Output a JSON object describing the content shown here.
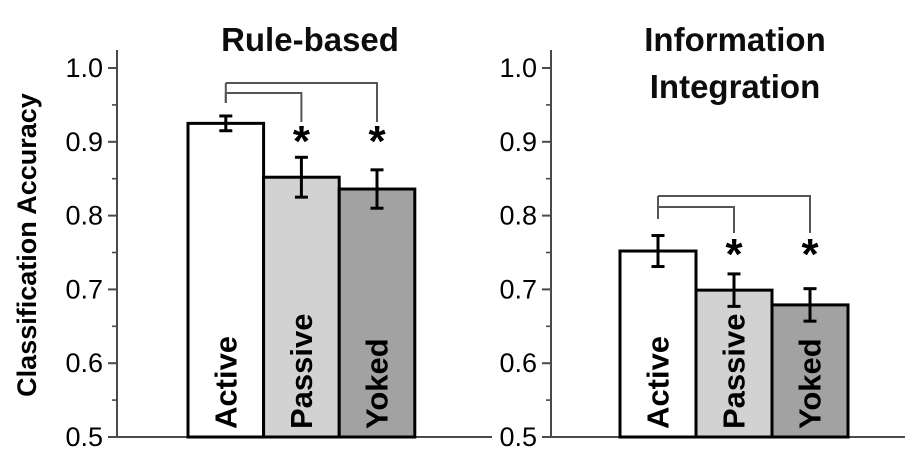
{
  "figure": {
    "ylabel": "Classification Accuracy",
    "background": "#ffffff"
  },
  "colors": {
    "bar_outline": "#000000",
    "error_bar": "#000000",
    "axis_line": "#4a4a4a",
    "bracket_line": "#555555",
    "text": "#000000"
  },
  "chart_data": [
    {
      "type": "bar",
      "title": "Rule-based",
      "xlabel": "",
      "ylabel": "Classification Accuracy",
      "categories": [
        "Active",
        "Passive",
        "Yoked"
      ],
      "values": [
        0.925,
        0.852,
        0.836
      ],
      "errors": [
        0.01,
        0.027,
        0.026
      ],
      "bar_fills": [
        "#ffffff",
        "#d2d2d2",
        "#a2a2a2"
      ],
      "ylim": [
        0.5,
        1.0
      ],
      "yticks": [
        1.0,
        0.9,
        0.8,
        0.7,
        0.6,
        0.5
      ],
      "ytick_labels": [
        "1.0",
        "0.9",
        "0.8",
        "0.7",
        "0.6",
        "0.5"
      ],
      "yticks_minor": [
        0.95,
        0.85,
        0.75,
        0.65,
        0.55
      ],
      "grid": false,
      "legend": null,
      "significance": [
        {
          "from": "Active",
          "to": "Passive",
          "label": "*"
        },
        {
          "from": "Active",
          "to": "Yoked",
          "label": "*"
        }
      ]
    },
    {
      "type": "bar",
      "title": "Information\nIntegration",
      "xlabel": "",
      "ylabel": "Classification Accuracy",
      "categories": [
        "Active",
        "Passive",
        "Yoked"
      ],
      "values": [
        0.752,
        0.699,
        0.679
      ],
      "errors": [
        0.021,
        0.022,
        0.022
      ],
      "bar_fills": [
        "#ffffff",
        "#d2d2d2",
        "#a2a2a2"
      ],
      "ylim": [
        0.5,
        1.0
      ],
      "yticks": [
        1.0,
        0.9,
        0.8,
        0.7,
        0.6,
        0.5
      ],
      "ytick_labels": [
        "1.0",
        "0.9",
        "0.8",
        "0.7",
        "0.6",
        "0.5"
      ],
      "yticks_minor": [
        0.95,
        0.85,
        0.75,
        0.65,
        0.55
      ],
      "grid": false,
      "legend": null,
      "significance": [
        {
          "from": "Active",
          "to": "Passive",
          "label": "*"
        },
        {
          "from": "Active",
          "to": "Yoked",
          "label": "*"
        }
      ]
    }
  ]
}
